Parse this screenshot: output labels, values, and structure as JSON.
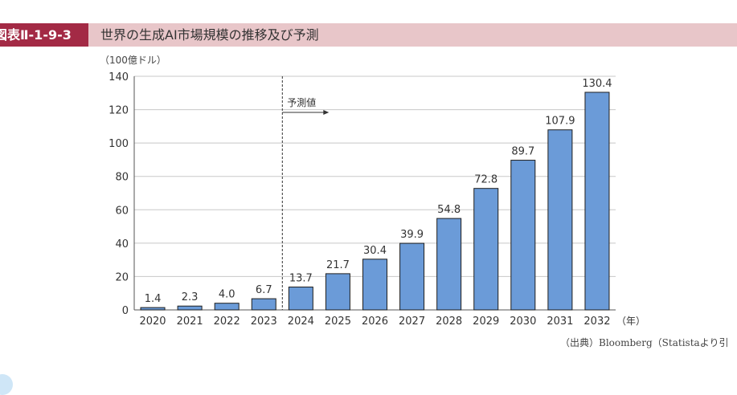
{
  "header": {
    "tag": "図表Ⅱ-1-9-3",
    "title": "世界の生成AI市場規模の推移及び予測"
  },
  "source": "（出典）Bloomberg（Statistaより引",
  "colors": {
    "bar": "#6b9bd8",
    "bar_stroke": "#1e1e1e",
    "header_tag": "#a32a45",
    "header_bar": "#e8c6c9"
  },
  "chart_data": {
    "type": "bar",
    "title": "",
    "ylabel": "（100億ドル）",
    "xlabel_suffix": "（年）",
    "ylim": [
      0,
      140
    ],
    "yticks": [
      "0",
      "20",
      "40",
      "60",
      "80",
      "100",
      "120",
      "140"
    ],
    "categories": [
      "2020",
      "2021",
      "2022",
      "2023",
      "2024",
      "2025",
      "2026",
      "2027",
      "2028",
      "2029",
      "2030",
      "2031",
      "2032"
    ],
    "values": [
      1.4,
      2.3,
      4.0,
      6.7,
      13.7,
      21.7,
      30.4,
      39.9,
      54.8,
      72.8,
      89.7,
      107.9,
      130.4
    ],
    "value_labels": [
      "1.4",
      "2.3",
      "4.0",
      "6.7",
      "13.7",
      "21.7",
      "30.4",
      "39.9",
      "54.8",
      "72.8",
      "89.7",
      "107.9",
      "130.4"
    ],
    "grid": true,
    "forecast": {
      "label": "予測値",
      "starts_before_category": "2024"
    }
  }
}
